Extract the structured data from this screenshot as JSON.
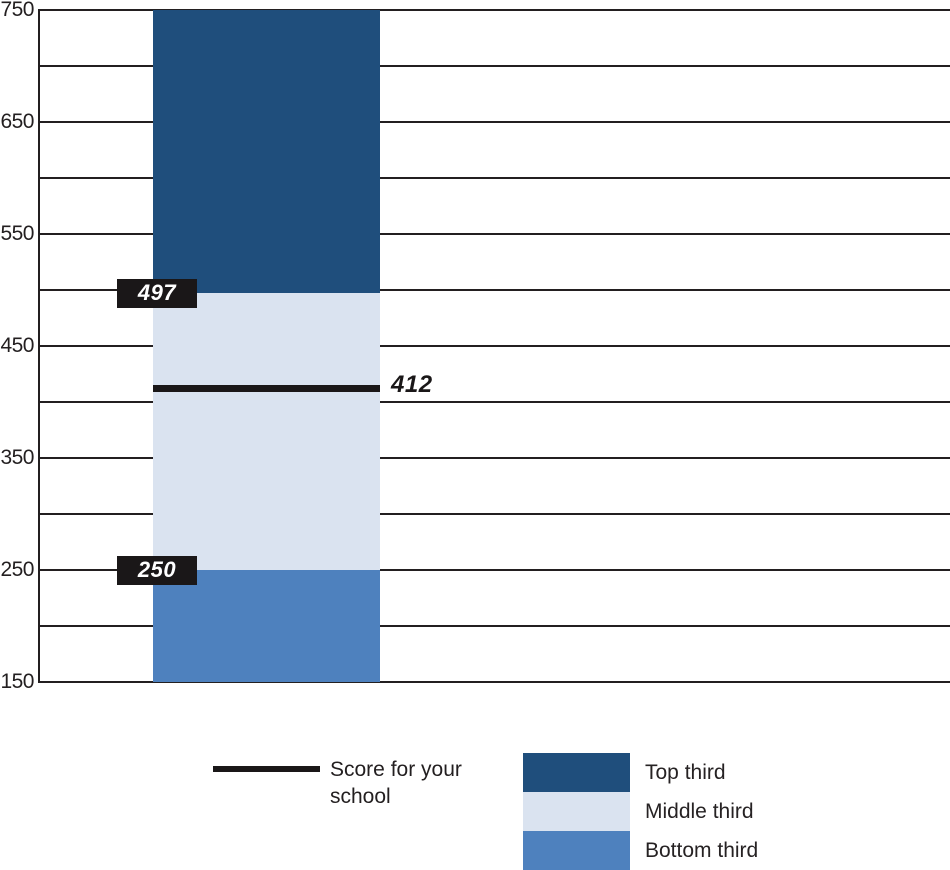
{
  "chart_data": {
    "type": "bar",
    "title": "",
    "xlabel": "",
    "ylabel": "",
    "ylim": [
      150,
      750
    ],
    "gridline_step": 50,
    "grid": true,
    "yticks": [
      "750",
      "650",
      "550",
      "450",
      "350",
      "250",
      "150"
    ],
    "ytick_values": [
      750,
      650,
      550,
      450,
      350,
      250,
      150
    ],
    "series": [
      {
        "name": "Top third",
        "from": 497,
        "to": 750,
        "color": "#1f4e7c"
      },
      {
        "name": "Middle third",
        "from": 250,
        "to": 497,
        "color": "#dae3f0"
      },
      {
        "name": "Bottom third",
        "from": 150,
        "to": 250,
        "color": "#4e81be"
      }
    ],
    "boundaries": {
      "top_middle": {
        "value": 497,
        "label": "497"
      },
      "middle_bottom": {
        "value": 250,
        "label": "250"
      }
    },
    "score_line": {
      "value": 412,
      "label": "412",
      "color": "#1a1718"
    },
    "legend": {
      "position": "bottom",
      "score": {
        "label": "Score for your school",
        "swatch": "line"
      },
      "items": [
        {
          "label": "Top third",
          "color": "#1f4e7c"
        },
        {
          "label": "Middle third",
          "color": "#dae3f0"
        },
        {
          "label": "Bottom third",
          "color": "#4e81be"
        }
      ]
    },
    "axis_color": "#231f20"
  }
}
